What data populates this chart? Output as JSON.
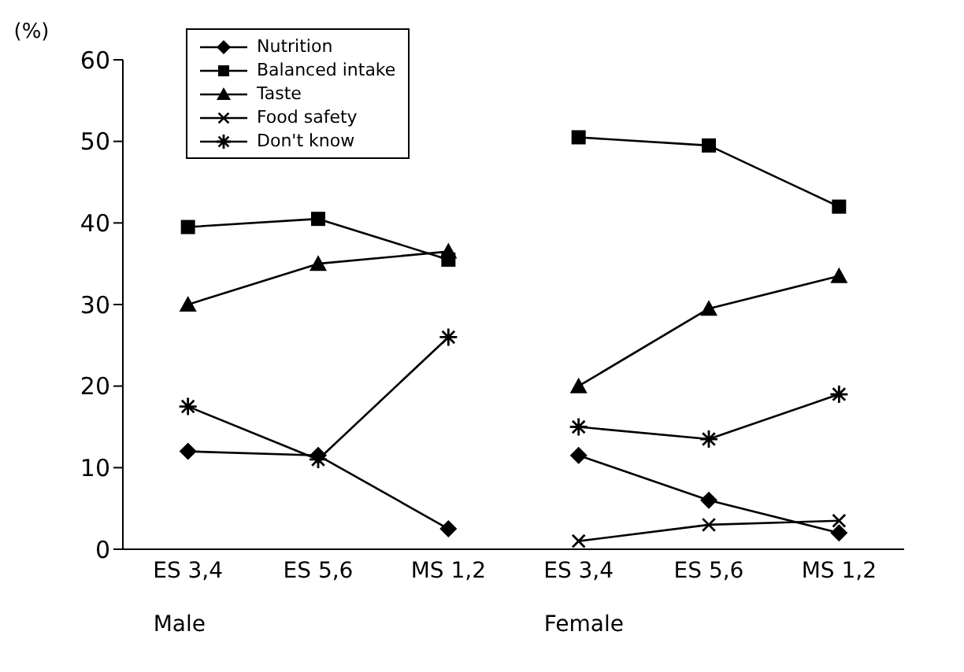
{
  "chart_data": {
    "type": "line",
    "ylabel": "(%)",
    "categories": [
      "ES 3,4",
      "ES 5,6",
      "MS 1,2",
      "ES 3,4",
      "ES 5,6",
      "MS 1,2"
    ],
    "series": [
      {
        "name": "Nutrition",
        "color": "#000000",
        "marker": "diamond",
        "values": [
          12,
          11.5,
          2.5,
          11.5,
          6,
          2
        ]
      },
      {
        "name": "Balanced intake",
        "color": "#000000",
        "marker": "square",
        "values": [
          39.5,
          40.5,
          35.5,
          50.5,
          49.5,
          42
        ]
      },
      {
        "name": "Taste",
        "color": "#000000",
        "marker": "triangle",
        "values": [
          30,
          35,
          36.5,
          20,
          29.5,
          33.5
        ]
      },
      {
        "name": "Food safety",
        "color": "#000000",
        "marker": "cross",
        "values": [
          null,
          null,
          null,
          1,
          3,
          3.5
        ]
      },
      {
        "name": "Don't know",
        "color": "#000000",
        "marker": "star",
        "values": [
          17.5,
          11,
          26,
          15,
          13.5,
          19
        ]
      }
    ],
    "annotations": [
      "Male",
      "Female"
    ],
    "ylim": [
      0,
      60
    ],
    "yticks": [
      0,
      10,
      20,
      30,
      40,
      50,
      60
    ],
    "grid": false,
    "legend": "top left",
    "line_style": "solid"
  }
}
